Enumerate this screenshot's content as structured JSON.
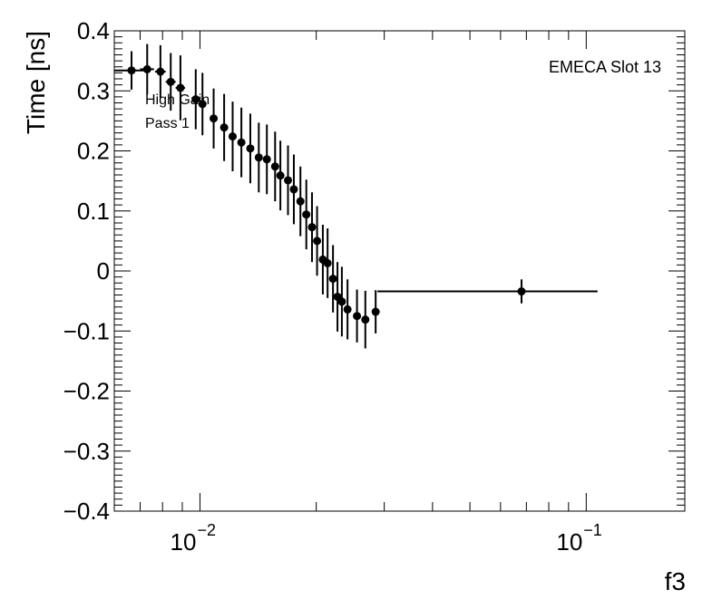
{
  "chart_data": {
    "type": "scatter",
    "title": "",
    "xlabel": "f3",
    "ylabel": "Time [ns]",
    "xscale": "log",
    "xlim": [
      0.006,
      0.18
    ],
    "ylim": [
      -0.4,
      0.4
    ],
    "grid": false,
    "x_ticks": [
      {
        "value": 0.01,
        "base": "10",
        "exp": "−2"
      },
      {
        "value": 0.1,
        "base": "10",
        "exp": "−1"
      }
    ],
    "y_ticks": [
      {
        "value": 0.4,
        "label": "0.4"
      },
      {
        "value": 0.3,
        "label": "0.3"
      },
      {
        "value": 0.2,
        "label": "0.2"
      },
      {
        "value": 0.1,
        "label": "0.1"
      },
      {
        "value": 0.0,
        "label": "0"
      },
      {
        "value": -0.1,
        "label": "−0.1"
      },
      {
        "value": -0.2,
        "label": "−0.2"
      },
      {
        "value": -0.3,
        "label": "−0.3"
      },
      {
        "value": -0.4,
        "label": "−0.4"
      }
    ],
    "annotations": [
      "EMECA Slot 13",
      "High Gain",
      "Pass 1"
    ],
    "points": [
      {
        "x": 0.00665,
        "y": 0.334,
        "err": 0.032,
        "xlo": 0.006,
        "xhi": 0.0073
      },
      {
        "x": 0.0073,
        "y": 0.336,
        "err": 0.042,
        "xlo": 0.007,
        "xhi": 0.0076
      },
      {
        "x": 0.0079,
        "y": 0.332,
        "err": 0.044,
        "xlo": 0.00765,
        "xhi": 0.00815
      },
      {
        "x": 0.0084,
        "y": 0.315,
        "err": 0.048,
        "xlo": 0.00815,
        "xhi": 0.00865
      },
      {
        "x": 0.0089,
        "y": 0.305,
        "err": 0.054,
        "xlo": 0.00865,
        "xhi": 0.00915
      },
      {
        "x": 0.00975,
        "y": 0.286,
        "err": 0.05,
        "xlo": null,
        "xhi": null
      },
      {
        "x": 0.01015,
        "y": 0.278,
        "err": 0.052,
        "xlo": null,
        "xhi": null
      },
      {
        "x": 0.01085,
        "y": 0.254,
        "err": 0.05,
        "xlo": null,
        "xhi": null
      },
      {
        "x": 0.01155,
        "y": 0.239,
        "err": 0.056,
        "xlo": null,
        "xhi": null
      },
      {
        "x": 0.01215,
        "y": 0.224,
        "err": 0.058,
        "xlo": null,
        "xhi": null
      },
      {
        "x": 0.0128,
        "y": 0.214,
        "err": 0.058,
        "xlo": null,
        "xhi": null
      },
      {
        "x": 0.0135,
        "y": 0.204,
        "err": 0.058,
        "xlo": null,
        "xhi": null
      },
      {
        "x": 0.0142,
        "y": 0.189,
        "err": 0.058,
        "xlo": null,
        "xhi": null
      },
      {
        "x": 0.0149,
        "y": 0.186,
        "err": 0.058,
        "xlo": null,
        "xhi": null
      },
      {
        "x": 0.01565,
        "y": 0.174,
        "err": 0.058,
        "xlo": null,
        "xhi": null
      },
      {
        "x": 0.01615,
        "y": 0.159,
        "err": 0.058,
        "xlo": null,
        "xhi": null
      },
      {
        "x": 0.0169,
        "y": 0.151,
        "err": 0.058,
        "xlo": null,
        "xhi": null
      },
      {
        "x": 0.0175,
        "y": 0.136,
        "err": 0.058,
        "xlo": null,
        "xhi": null
      },
      {
        "x": 0.0182,
        "y": 0.116,
        "err": 0.058,
        "xlo": null,
        "xhi": null
      },
      {
        "x": 0.01885,
        "y": 0.094,
        "err": 0.058,
        "xlo": null,
        "xhi": null
      },
      {
        "x": 0.0195,
        "y": 0.073,
        "err": 0.058,
        "xlo": null,
        "xhi": null
      },
      {
        "x": 0.0201,
        "y": 0.05,
        "err": 0.058,
        "xlo": null,
        "xhi": null
      },
      {
        "x": 0.0208,
        "y": 0.019,
        "err": 0.058,
        "xlo": null,
        "xhi": null
      },
      {
        "x": 0.0214,
        "y": 0.013,
        "err": 0.058,
        "xlo": null,
        "xhi": null
      },
      {
        "x": 0.0221,
        "y": -0.013,
        "err": 0.056,
        "xlo": null,
        "xhi": null
      },
      {
        "x": 0.0227,
        "y": -0.043,
        "err": 0.058,
        "xlo": null,
        "xhi": null
      },
      {
        "x": 0.0233,
        "y": -0.051,
        "err": 0.058,
        "xlo": null,
        "xhi": null
      },
      {
        "x": 0.0241,
        "y": -0.064,
        "err": 0.05,
        "xlo": null,
        "xhi": null
      },
      {
        "x": 0.0255,
        "y": -0.075,
        "err": 0.044,
        "xlo": null,
        "xhi": null
      },
      {
        "x": 0.0268,
        "y": -0.081,
        "err": 0.048,
        "xlo": null,
        "xhi": null
      },
      {
        "x": 0.0285,
        "y": -0.068,
        "err": 0.036,
        "xlo": null,
        "xhi": null
      },
      {
        "x": 0.068,
        "y": -0.034,
        "err": 0.02,
        "xlo": 0.0288,
        "xhi": 0.107
      }
    ]
  }
}
